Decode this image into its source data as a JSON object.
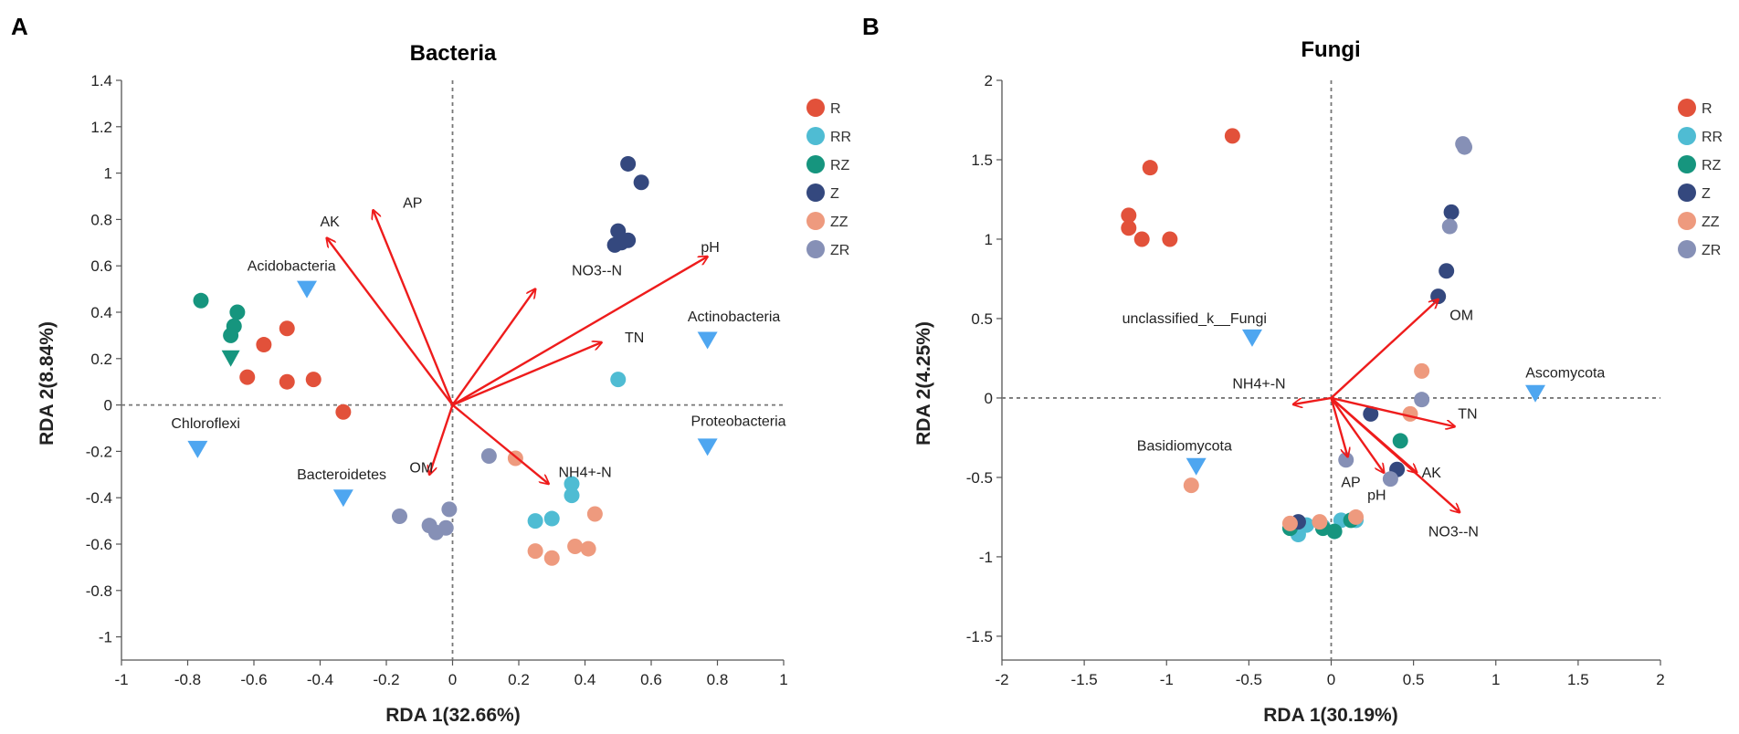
{
  "group_colors": {
    "R": "#E2513A",
    "RR": "#4FBCD3",
    "RZ": "#16957E",
    "Z": "#34487E",
    "ZZ": "#EE9A7E",
    "ZR": "#8690B6"
  },
  "arrow_color": "#EE1C1C",
  "taxon_color": "#4EA6F0",
  "chart_data": [
    {
      "panel": "A",
      "type": "scatter",
      "title": "Bacteria",
      "xlabel": "RDA 1(32.66%)",
      "ylabel": "RDA 2(8.84%)",
      "xlim": [
        -1,
        1
      ],
      "ylim": [
        -1.1,
        1.4
      ],
      "xticks": [
        "-1",
        "-0.8",
        "-0.6",
        "-0.4",
        "-0.2",
        "0",
        "0.2",
        "0.4",
        "0.6",
        "0.8",
        "1"
      ],
      "yticks": [
        "1.4",
        "1.2",
        "1",
        "0.8",
        "0.6",
        "0.4",
        "0.2",
        "0",
        "-0.2",
        "-0.4",
        "-0.6",
        "-0.8",
        "-1"
      ],
      "legend": [
        "R",
        "RR",
        "RZ",
        "Z",
        "ZZ",
        "ZR"
      ],
      "samples": [
        {
          "group": "R",
          "points": [
            [
              -0.57,
              0.26
            ],
            [
              -0.5,
              0.33
            ],
            [
              -0.62,
              0.12
            ],
            [
              -0.5,
              0.1
            ],
            [
              -0.42,
              0.11
            ],
            [
              -0.33,
              -0.03
            ]
          ]
        },
        {
          "group": "RR",
          "points": [
            [
              0.5,
              0.11
            ],
            [
              0.36,
              -0.34
            ],
            [
              0.36,
              -0.39
            ],
            [
              0.3,
              -0.49
            ],
            [
              0.25,
              -0.5
            ]
          ]
        },
        {
          "group": "RZ",
          "points": [
            [
              -0.76,
              0.45
            ],
            [
              -0.65,
              0.4
            ],
            [
              -0.66,
              0.34
            ],
            [
              -0.67,
              0.3
            ]
          ]
        },
        {
          "group": "Z",
          "points": [
            [
              0.53,
              1.04
            ],
            [
              0.57,
              0.96
            ],
            [
              0.5,
              0.75
            ],
            [
              0.51,
              0.7
            ],
            [
              0.53,
              0.71
            ],
            [
              0.49,
              0.69
            ]
          ]
        },
        {
          "group": "ZZ",
          "points": [
            [
              0.19,
              -0.23
            ],
            [
              0.43,
              -0.47
            ],
            [
              0.41,
              -0.62
            ],
            [
              0.37,
              -0.61
            ],
            [
              0.25,
              -0.63
            ],
            [
              0.3,
              -0.66
            ]
          ]
        },
        {
          "group": "ZR",
          "points": [
            [
              0.11,
              -0.22
            ],
            [
              -0.16,
              -0.48
            ],
            [
              -0.07,
              -0.52
            ],
            [
              -0.05,
              -0.55
            ],
            [
              -0.02,
              -0.53
            ],
            [
              -0.01,
              -0.45
            ]
          ]
        }
      ],
      "arrows": [
        {
          "label": "AP",
          "x": -0.24,
          "y": 0.84,
          "lx": -0.15,
          "ly": 0.85
        },
        {
          "label": "AK",
          "x": -0.38,
          "y": 0.72,
          "lx": -0.4,
          "ly": 0.77
        },
        {
          "label": "NO3--N",
          "x": 0.25,
          "y": 0.5,
          "lx": 0.36,
          "ly": 0.56
        },
        {
          "label": "pH",
          "x": 0.77,
          "y": 0.64,
          "lx": 0.75,
          "ly": 0.66
        },
        {
          "label": "TN",
          "x": 0.45,
          "y": 0.27,
          "lx": 0.52,
          "ly": 0.27
        },
        {
          "label": "OM",
          "x": -0.07,
          "y": -0.3,
          "lx": -0.13,
          "ly": -0.29
        },
        {
          "label": "NH4+-N",
          "x": 0.29,
          "y": -0.34,
          "lx": 0.32,
          "ly": -0.31
        }
      ],
      "taxa": [
        {
          "label": "Acidobacteria",
          "x": -0.44,
          "y": 0.5,
          "lx": -0.62,
          "ly": 0.58
        },
        {
          "label": "Actinobacteria",
          "x": 0.77,
          "y": 0.28,
          "lx": 0.71,
          "ly": 0.36
        },
        {
          "label": "Chloroflexi",
          "x": -0.77,
          "y": -0.19,
          "lx": -0.85,
          "ly": -0.1
        },
        {
          "label": "Bacteroidetes",
          "x": -0.33,
          "y": -0.4,
          "lx": -0.47,
          "ly": -0.32
        },
        {
          "label": "Proteobacteria",
          "x": 0.77,
          "y": -0.18,
          "lx": 0.72,
          "ly": -0.09
        }
      ],
      "extra_markers": [
        {
          "group": "RZ",
          "x": -0.67,
          "y": 0.2
        }
      ]
    },
    {
      "panel": "B",
      "type": "scatter",
      "title": "Fungi",
      "xlabel": "RDA 1(30.19%)",
      "ylabel": "RDA 2(4.25%)",
      "xlim": [
        -2,
        2
      ],
      "ylim": [
        -1.65,
        2
      ],
      "xticks": [
        "-2",
        "-1.5",
        "-1",
        "-0.5",
        "0",
        "0.5",
        "1",
        "1.5",
        "2"
      ],
      "yticks": [
        "2",
        "1.5",
        "1",
        "0.5",
        "0",
        "-0.5",
        "-1",
        "-1.5"
      ],
      "legend": [
        "R",
        "RR",
        "RZ",
        "Z",
        "ZZ",
        "ZR"
      ],
      "samples": [
        {
          "group": "R",
          "points": [
            [
              -0.6,
              1.65
            ],
            [
              -1.1,
              1.45
            ],
            [
              -1.23,
              1.15
            ],
            [
              -1.23,
              1.07
            ],
            [
              -1.15,
              1.0
            ],
            [
              -0.98,
              1.0
            ]
          ]
        },
        {
          "group": "RR",
          "points": [
            [
              -0.2,
              -0.86
            ],
            [
              0.06,
              -0.77
            ],
            [
              0.15,
              -0.77
            ],
            [
              -0.15,
              -0.8
            ],
            [
              -0.05,
              -0.81
            ]
          ]
        },
        {
          "group": "RZ",
          "points": [
            [
              0.42,
              -0.27
            ],
            [
              -0.25,
              -0.82
            ],
            [
              -0.05,
              -0.82
            ],
            [
              0.02,
              -0.84
            ],
            [
              0.12,
              -0.77
            ]
          ]
        },
        {
          "group": "Z",
          "points": [
            [
              0.73,
              1.17
            ],
            [
              0.7,
              0.8
            ],
            [
              0.65,
              0.64
            ],
            [
              0.24,
              -0.1
            ],
            [
              0.4,
              -0.45
            ],
            [
              -0.2,
              -0.78
            ]
          ]
        },
        {
          "group": "ZZ",
          "points": [
            [
              0.55,
              0.17
            ],
            [
              0.48,
              -0.1
            ],
            [
              -0.85,
              -0.55
            ],
            [
              0.15,
              -0.75
            ],
            [
              -0.25,
              -0.79
            ],
            [
              -0.07,
              -0.78
            ]
          ]
        },
        {
          "group": "ZR",
          "points": [
            [
              0.8,
              1.6
            ],
            [
              0.81,
              1.58
            ],
            [
              0.72,
              1.08
            ],
            [
              0.55,
              -0.01
            ],
            [
              0.09,
              -0.39
            ],
            [
              0.36,
              -0.51
            ]
          ]
        }
      ],
      "arrows": [
        {
          "label": "OM",
          "x": 0.65,
          "y": 0.62,
          "lx": 0.72,
          "ly": 0.49
        },
        {
          "label": "NH4+-N",
          "x": -0.23,
          "y": -0.04,
          "lx": -0.6,
          "ly": 0.06
        },
        {
          "label": "TN",
          "x": 0.75,
          "y": -0.18,
          "lx": 0.77,
          "ly": -0.13
        },
        {
          "label": "AP",
          "x": 0.1,
          "y": -0.37,
          "lx": 0.06,
          "ly": -0.56
        },
        {
          "label": "pH",
          "x": 0.32,
          "y": -0.47,
          "lx": 0.22,
          "ly": -0.64
        },
        {
          "label": "AK",
          "x": 0.52,
          "y": -0.47,
          "lx": 0.55,
          "ly": -0.5
        },
        {
          "label": "NO3--N",
          "x": 0.78,
          "y": -0.72,
          "lx": 0.59,
          "ly": -0.87
        }
      ],
      "taxa": [
        {
          "label": "unclassified_k__Fungi",
          "x": -0.48,
          "y": 0.38,
          "lx": -1.27,
          "ly": 0.47
        },
        {
          "label": "Ascomycota",
          "x": 1.24,
          "y": 0.03,
          "lx": 1.18,
          "ly": 0.13
        },
        {
          "label": "Basidiomycota",
          "x": -0.82,
          "y": -0.43,
          "lx": -1.18,
          "ly": -0.33
        }
      ],
      "extra_markers": []
    }
  ]
}
